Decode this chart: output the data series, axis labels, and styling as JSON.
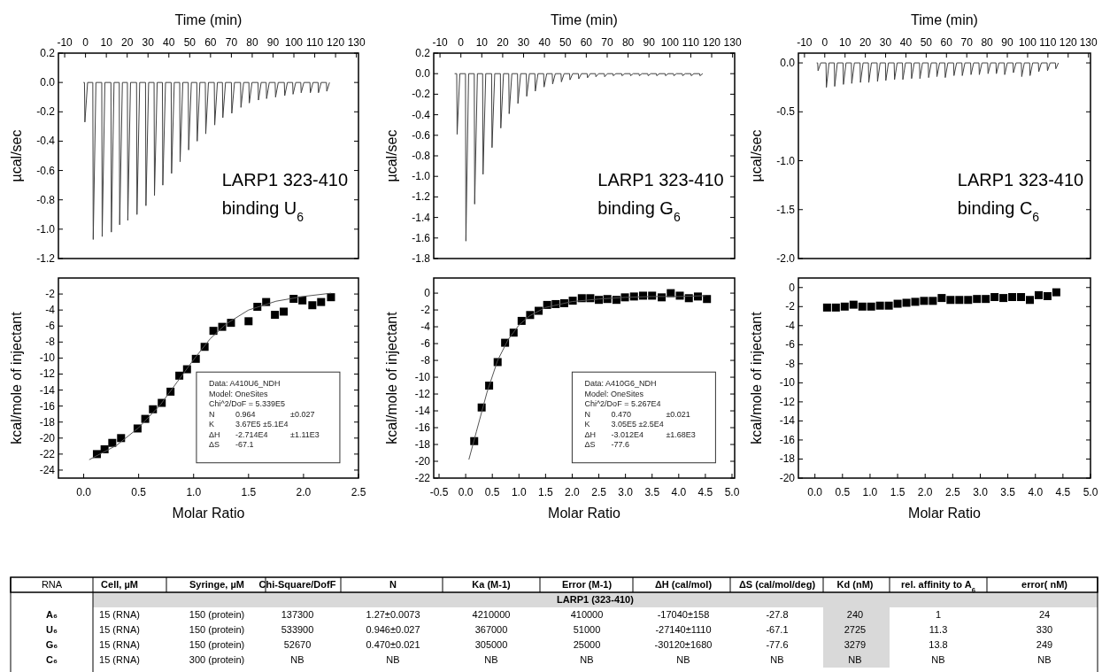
{
  "chart_data": [
    {
      "type": "line",
      "xlabel": "Time (min)",
      "ylabel": "µcal/sec",
      "xlim": [
        -13,
        131
      ],
      "xticks": [
        -10,
        0,
        10,
        20,
        30,
        40,
        50,
        60,
        70,
        80,
        90,
        100,
        110,
        120,
        130
      ],
      "ylim": [
        -1.2,
        0.2
      ],
      "yticks": [
        {
          "value": 0.2,
          "label": "0.2"
        },
        {
          "value": 0,
          "label": "0.0"
        },
        {
          "value": -0.2,
          "label": "-0.2"
        },
        {
          "value": -0.4,
          "label": "-0.4"
        },
        {
          "value": -0.6,
          "label": "-0.6"
        },
        {
          "value": -0.8,
          "label": "-0.8"
        },
        {
          "value": -1,
          "label": "-1.0"
        },
        {
          "value": -1.2,
          "label": "-1.2"
        }
      ],
      "x": [
        -1,
        -0.5,
        -0.3,
        1.0,
        3.5,
        3.7,
        5.0,
        7.8,
        8.0,
        9.3,
        12.2,
        12.4,
        13.7,
        16.2,
        16.4,
        17.7,
        20.1,
        20.3,
        21.6,
        24.5,
        24.7,
        26.0,
        28.8,
        29.0,
        30.3,
        32.9,
        33.1,
        34.4,
        36.9,
        37.1,
        38.4,
        41.1,
        41.3,
        42.6,
        45.2,
        45.4,
        46.7,
        49.3,
        49.5,
        50.8,
        53.4,
        53.6,
        54.9,
        57.5,
        57.7,
        59.0,
        61.8,
        62.0,
        63.3,
        65.7,
        65.9,
        67.2,
        70.0,
        70.2,
        71.5,
        74.4,
        74.6,
        75.9,
        78.4,
        78.6,
        79.9,
        82.8,
        83.0,
        84.3,
        86.7,
        86.9,
        88.2,
        91.0,
        91.2,
        92.5,
        95.4,
        95.6,
        96.9,
        99.4,
        99.6,
        100.9,
        103.3,
        103.5,
        104.8,
        107.7,
        107.9,
        109.2,
        111.6,
        111.8,
        113.1,
        115.6,
        115.8,
        117.1
      ],
      "series": [
        {
          "color": "#404040",
          "values": [
            0,
            0,
            -0.27,
            0,
            0,
            -1.07,
            0,
            0,
            -1.05,
            0,
            0,
            -1.02,
            0,
            0,
            -0.97,
            0,
            0,
            -0.94,
            0,
            0,
            -0.9,
            0,
            0,
            -0.84,
            0,
            0,
            -0.77,
            0,
            0,
            -0.7,
            0,
            0,
            -0.62,
            0,
            0,
            -0.54,
            0,
            0,
            -0.46,
            0,
            0,
            -0.4,
            0,
            0,
            -0.35,
            0,
            0,
            -0.29,
            0,
            0,
            -0.24,
            0,
            0,
            -0.21,
            0,
            0,
            -0.17,
            0,
            0,
            -0.14,
            0,
            0,
            -0.12,
            0,
            0,
            -0.11,
            0,
            0,
            -0.1,
            0,
            0,
            -0.09,
            0,
            0,
            -0.08,
            0,
            0,
            -0.07,
            0,
            0,
            -0.07,
            0,
            0,
            -0.07,
            0,
            0,
            -0.06,
            0
          ]
        }
      ],
      "annotations": [
        "LARP1 323-410",
        "binding U$_{6}$"
      ]
    },
    {
      "type": "line",
      "xlabel": "Time (min)",
      "ylabel": "µcal/sec",
      "xlim": [
        -13,
        131
      ],
      "xticks": [
        -10,
        0,
        10,
        20,
        30,
        40,
        50,
        60,
        70,
        80,
        90,
        100,
        110,
        120,
        130
      ],
      "ylim": [
        -1.8,
        0.2
      ],
      "yticks": [
        {
          "value": 0.2,
          "label": "0.2"
        },
        {
          "value": 0,
          "label": "0.0"
        },
        {
          "value": -0.2,
          "label": "-0.2"
        },
        {
          "value": -0.4,
          "label": "-0.4"
        },
        {
          "value": -0.6,
          "label": "-0.6"
        },
        {
          "value": -0.8,
          "label": "-0.8"
        },
        {
          "value": -1,
          "label": "-1.0"
        },
        {
          "value": -1.2,
          "label": "-1.2"
        },
        {
          "value": -1.4,
          "label": "-1.4"
        },
        {
          "value": -1.6,
          "label": "-1.6"
        },
        {
          "value": -1.8,
          "label": "-1.8"
        }
      ],
      "x": [
        -3,
        -2.0,
        -1.8,
        -0.5,
        2.2,
        2.4,
        3.7,
        6.4,
        6.6,
        7.9,
        10.4,
        10.6,
        11.9,
        14.7,
        14.9,
        16.2,
        18.9,
        19.1,
        20.4,
        22.9,
        23.1,
        24.4,
        27.1,
        27.3,
        28.6,
        31.3,
        31.5,
        32.8,
        35.4,
        35.6,
        36.9,
        39.6,
        39.8,
        41.1,
        43.7,
        43.9,
        45.2,
        47.9,
        48.1,
        49.4,
        52.0,
        52.2,
        53.5,
        56.2,
        56.4,
        57.7,
        60.4,
        60.6,
        61.9,
        64.4,
        64.6,
        65.9,
        68.6,
        68.8,
        70.1,
        72.7,
        72.9,
        74.2,
        76.9,
        77.1,
        78.4,
        81.0,
        81.2,
        82.5,
        85.2,
        85.4,
        86.7,
        89.4,
        89.6,
        90.9,
        93.5,
        93.7,
        95.0,
        97.7,
        97.9,
        99.2,
        101.7,
        101.9,
        103.2,
        105.9,
        106.1,
        107.4,
        110.0,
        110.2,
        111.5,
        114.2,
        114.4,
        115.7
      ],
      "series": [
        {
          "color": "#404040",
          "values": [
            0,
            0,
            -0.59,
            0,
            0,
            -1.63,
            0,
            0,
            -1.27,
            0,
            0,
            -0.98,
            0,
            0,
            -0.72,
            0,
            0,
            -0.53,
            0,
            0,
            -0.39,
            0,
            0,
            -0.29,
            0,
            0,
            -0.22,
            0,
            0,
            -0.17,
            0,
            0,
            -0.13,
            0,
            0,
            -0.1,
            0,
            0,
            -0.08,
            0,
            0,
            -0.06,
            0,
            0,
            -0.05,
            0,
            0,
            -0.04,
            0,
            0,
            -0.03,
            0,
            0,
            -0.03,
            0,
            0,
            -0.02,
            0,
            0,
            -0.02,
            0,
            0,
            -0.02,
            0,
            0,
            -0.02,
            0,
            0,
            -0.02,
            0,
            0,
            -0.02,
            0,
            0,
            -0.02,
            0,
            0,
            -0.02,
            0,
            0,
            -0.02,
            0,
            0,
            -0.02,
            0,
            0,
            -0.02,
            0
          ]
        }
      ],
      "annotations": [
        "LARP1 323-410",
        "binding G$_{6}$"
      ]
    },
    {
      "type": "line",
      "xlabel": "Time (min)",
      "ylabel": "µcal/sec",
      "xlim": [
        -13,
        131
      ],
      "xticks": [
        -10,
        0,
        10,
        20,
        30,
        40,
        50,
        60,
        70,
        80,
        90,
        100,
        110,
        120,
        130
      ],
      "ylim": [
        -2.0,
        0.1
      ],
      "yticks": [
        {
          "value": 0,
          "label": "0.0"
        },
        {
          "value": -0.5,
          "label": "-0.5"
        },
        {
          "value": -1,
          "label": "-1.0"
        },
        {
          "value": -1.5,
          "label": "-1.5"
        },
        {
          "value": -2,
          "label": "-2.0"
        }
      ],
      "x": [
        -4,
        -3.5,
        -3.3,
        -2.0,
        0.6,
        0.8,
        2.1,
        4.7,
        4.9,
        6.2,
        9.0,
        9.2,
        10.5,
        13.1,
        13.3,
        14.6,
        17.4,
        17.6,
        18.9,
        21.5,
        21.7,
        23.0,
        25.8,
        26.0,
        27.3,
        29.9,
        30.1,
        31.4,
        34.2,
        34.4,
        35.7,
        38.3,
        38.5,
        39.8,
        42.6,
        42.8,
        44.1,
        46.7,
        46.9,
        48.2,
        51.0,
        51.2,
        52.5,
        55.1,
        55.3,
        56.6,
        59.2,
        59.4,
        60.7,
        63.5,
        63.7,
        65.0,
        67.6,
        67.8,
        69.1,
        71.9,
        72.1,
        73.4,
        76.0,
        76.2,
        77.5,
        80.3,
        80.5,
        81.8,
        84.4,
        84.6,
        85.9,
        88.5,
        88.7,
        90.0,
        92.8,
        93.0,
        94.3,
        96.9,
        97.1,
        98.4,
        101.0,
        101.2,
        102.5,
        105.3,
        105.5,
        106.8,
        109.6,
        109.8,
        111.1,
        113.7,
        113.9,
        115.2
      ],
      "series": [
        {
          "color": "#404040",
          "values": [
            0,
            0,
            -0.08,
            0,
            0,
            -0.25,
            0,
            0,
            -0.24,
            0,
            0,
            -0.22,
            0,
            0,
            -0.21,
            0,
            0,
            -0.2,
            0,
            0,
            -0.2,
            0,
            0,
            -0.19,
            0,
            0,
            -0.18,
            0,
            0,
            -0.17,
            0,
            0,
            -0.17,
            0,
            0,
            -0.16,
            0,
            0,
            -0.16,
            0,
            0,
            -0.15,
            0,
            0,
            -0.14,
            0,
            0,
            -0.15,
            0,
            0,
            -0.13,
            0,
            0,
            -0.13,
            0,
            0,
            -0.12,
            0,
            0,
            -0.12,
            0,
            0,
            -0.11,
            0,
            0,
            -0.11,
            0,
            0,
            -0.12,
            0,
            0,
            -0.1,
            0,
            0,
            -0.14,
            0,
            0,
            -0.13,
            0,
            0,
            -0.09,
            0,
            0,
            -0.08,
            0,
            0,
            -0.06,
            0
          ]
        }
      ],
      "annotations": [
        "LARP1 323-410",
        "binding C$_{6}$"
      ]
    },
    {
      "type": "scatter",
      "xlabel": "Molar Ratio",
      "ylabel": "kcal/mole of injectant",
      "xlim": [
        -0.23,
        2.5
      ],
      "xticks": [
        {
          "value": 0,
          "label": "0.0"
        },
        {
          "value": 0.5,
          "label": "0.5"
        },
        {
          "value": 1,
          "label": "1.0"
        },
        {
          "value": 1.5,
          "label": "1.5"
        },
        {
          "value": 2,
          "label": "2.0"
        },
        {
          "value": 2.5,
          "label": "2.5"
        }
      ],
      "ylim": [
        -25,
        0
      ],
      "yticks": [
        -2,
        -4,
        -6,
        -8,
        -10,
        -12,
        -14,
        -16,
        -18,
        -20,
        -22,
        -24
      ],
      "series": [
        {
          "type": "scatter",
          "marker": "square",
          "color": "#000000",
          "x": [
            0.12,
            0.19,
            0.26,
            0.34,
            0.49,
            0.56,
            0.63,
            0.71,
            0.79,
            0.87,
            0.94,
            1.02,
            1.1,
            1.18,
            1.26,
            1.34,
            1.5,
            1.58,
            1.66,
            1.74,
            1.82,
            1.91,
            1.99,
            2.08,
            2.16,
            2.25
          ],
          "values": [
            -22.0,
            -21.4,
            -20.6,
            -20.0,
            -18.8,
            -17.6,
            -16.4,
            -15.6,
            -14.2,
            -12.2,
            -11.4,
            -10.1,
            -8.6,
            -6.6,
            -6.1,
            -5.6,
            -5.4,
            -3.6,
            -3.0,
            -4.6,
            -4.2,
            -2.6,
            -2.8,
            -3.4,
            -3.0,
            -2.4
          ]
        },
        {
          "type": "line",
          "marker": "none",
          "color": "#555555",
          "x": [
            0.05,
            0.3,
            0.5,
            0.7,
            0.85,
            1.0,
            1.15,
            1.3,
            1.5,
            1.75,
            2.0,
            2.25
          ],
          "values": [
            -22.7,
            -20.9,
            -18.7,
            -15.8,
            -13.0,
            -10.2,
            -7.6,
            -5.7,
            -4.0,
            -2.9,
            -2.3,
            -1.9
          ]
        }
      ],
      "annotations": [
        "Data: A410U6_NDH",
        "Model: OneSites",
        "Chi^2/DoF = 5.339E5",
        "N  0.964  ±0.027",
        "K  3.67E5 ±5.1E4",
        "ΔH  -2.714E4  ±1.11E3",
        "ΔS  -67.1"
      ]
    },
    {
      "type": "scatter",
      "xlabel": "Molar Ratio",
      "ylabel": "kcal/mole of injectant",
      "xlim": [
        -0.6,
        5.05
      ],
      "xticks": [
        {
          "value": -0.5,
          "label": "-0.5"
        },
        {
          "value": 0,
          "label": "0.0"
        },
        {
          "value": 0.5,
          "label": "0.5"
        },
        {
          "value": 1,
          "label": "1.0"
        },
        {
          "value": 1.5,
          "label": "1.5"
        },
        {
          "value": 2,
          "label": "2.0"
        },
        {
          "value": 2.5,
          "label": "2.5"
        },
        {
          "value": 3,
          "label": "3.0"
        },
        {
          "value": 3.5,
          "label": "3.5"
        },
        {
          "value": 4,
          "label": "4.0"
        },
        {
          "value": 4.5,
          "label": "4.5"
        },
        {
          "value": 5,
          "label": "5.0"
        }
      ],
      "ylim": [
        -22,
        1.8
      ],
      "yticks": [
        0,
        -2,
        -4,
        -6,
        -8,
        -10,
        -12,
        -14,
        -16,
        -18,
        -20,
        -22
      ],
      "series": [
        {
          "type": "scatter",
          "marker": "square",
          "color": "#000000",
          "x": [
            0.16,
            0.3,
            0.44,
            0.6,
            0.74,
            0.9,
            1.05,
            1.21,
            1.37,
            1.53,
            1.69,
            1.85,
            2.01,
            2.18,
            2.34,
            2.5,
            2.66,
            2.83,
            2.99,
            3.16,
            3.33,
            3.5,
            3.68,
            3.85,
            4.02,
            4.19,
            4.36,
            4.53
          ],
          "values": [
            -17.6,
            -13.6,
            -11.0,
            -8.2,
            -5.9,
            -4.7,
            -3.3,
            -2.6,
            -2.1,
            -1.4,
            -1.3,
            -1.2,
            -0.9,
            -0.6,
            -0.6,
            -0.8,
            -0.7,
            -0.8,
            -0.5,
            -0.4,
            -0.3,
            -0.3,
            -0.5,
            0.0,
            -0.3,
            -0.6,
            -0.4,
            -0.7
          ]
        },
        {
          "type": "line",
          "marker": "none",
          "color": "#555555",
          "x": [
            0.06,
            0.2,
            0.4,
            0.6,
            0.8,
            1.0,
            1.2,
            1.5,
            2.0,
            2.5,
            3.0,
            3.5,
            4.0,
            4.5
          ],
          "values": [
            -19.8,
            -16.5,
            -11.8,
            -8.0,
            -5.5,
            -3.8,
            -2.7,
            -1.7,
            -1.0,
            -0.7,
            -0.5,
            -0.4,
            -0.4,
            -0.3
          ]
        }
      ],
      "annotations": [
        "Data: A410G6_NDH",
        "Model: OneSites",
        "Chi^2/DoF = 5.267E4",
        "N  0.470  ±0.021",
        "K  3.05E5 ±2.5E4",
        "ΔH  -3.012E4  ±1.68E3",
        "ΔS  -77.6"
      ]
    },
    {
      "type": "scatter",
      "xlabel": "Molar Ratio",
      "ylabel": "kcal/mole of injectant",
      "xlim": [
        -0.3,
        5.0
      ],
      "xticks": [
        {
          "value": 0,
          "label": "0.0"
        },
        {
          "value": 0.5,
          "label": "0.5"
        },
        {
          "value": 1,
          "label": "1.0"
        },
        {
          "value": 1.5,
          "label": "1.5"
        },
        {
          "value": 2,
          "label": "2.0"
        },
        {
          "value": 2.5,
          "label": "2.5"
        },
        {
          "value": 3,
          "label": "3.0"
        },
        {
          "value": 3.5,
          "label": "3.5"
        },
        {
          "value": 4,
          "label": "4.0"
        },
        {
          "value": 4.5,
          "label": "4.5"
        },
        {
          "value": 5,
          "label": "5.0"
        }
      ],
      "ylim": [
        -20,
        1
      ],
      "yticks": [
        0,
        -2,
        -4,
        -6,
        -8,
        -10,
        -12,
        -14,
        -16,
        -18,
        -20
      ],
      "series": [
        {
          "type": "scatter",
          "marker": "square",
          "color": "#000000",
          "x": [
            0.22,
            0.38,
            0.54,
            0.7,
            0.86,
            1.02,
            1.18,
            1.34,
            1.5,
            1.66,
            1.82,
            1.98,
            2.14,
            2.3,
            2.46,
            2.62,
            2.78,
            2.94,
            3.1,
            3.26,
            3.42,
            3.58,
            3.74,
            3.9,
            4.06,
            4.22,
            4.38
          ],
          "values": [
            -2.1,
            -2.1,
            -2.0,
            -1.8,
            -2.0,
            -2.0,
            -1.9,
            -1.9,
            -1.7,
            -1.6,
            -1.5,
            -1.4,
            -1.4,
            -1.1,
            -1.3,
            -1.3,
            -1.3,
            -1.2,
            -1.2,
            -1.0,
            -1.1,
            -1.0,
            -1.0,
            -1.3,
            -0.8,
            -0.9,
            -0.5
          ]
        }
      ]
    },
    {
      "type": "other",
      "title": "LARP1 (323-410)",
      "ylabel": "RNA",
      "categories": [
        "Cell,  µM",
        "Syringe, µM",
        "Chi-Square/DofF",
        "N",
        "Ka (M-1)",
        "Error (M-1)",
        "ΔH (cal/mol)",
        "ΔS (cal/mol/deg)",
        "Kd (nM)",
        "rel. affinity to A$_{6}$",
        "error( nM)"
      ],
      "y_categories": [
        "A₆",
        "U₆",
        "G₆",
        "C₆"
      ],
      "cell_labels": [
        [
          "15 (RNA)",
          "150 (protein)",
          "137300",
          "1.27±0.0073",
          "4210000",
          "410000",
          "-17040±158",
          "-27.8",
          "240",
          "1",
          "24"
        ],
        [
          "15 (RNA)",
          "150 (protein)",
          "533900",
          "0.946±0.027",
          "367000",
          "51000",
          "-27140±1110",
          "-67.1",
          "2725",
          "11.3",
          "330"
        ],
        [
          "15 (RNA)",
          "150 (protein)",
          "52670",
          "0.470±0.021",
          "305000",
          "25000",
          "-30120±1680",
          "-77.6",
          "3279",
          "13.8",
          "249"
        ],
        [
          "15 (RNA)",
          "300 (protein)",
          "NB",
          "NB",
          "NB",
          "NB",
          "NB",
          "NB",
          "NB",
          "NB",
          "NB"
        ]
      ]
    }
  ]
}
